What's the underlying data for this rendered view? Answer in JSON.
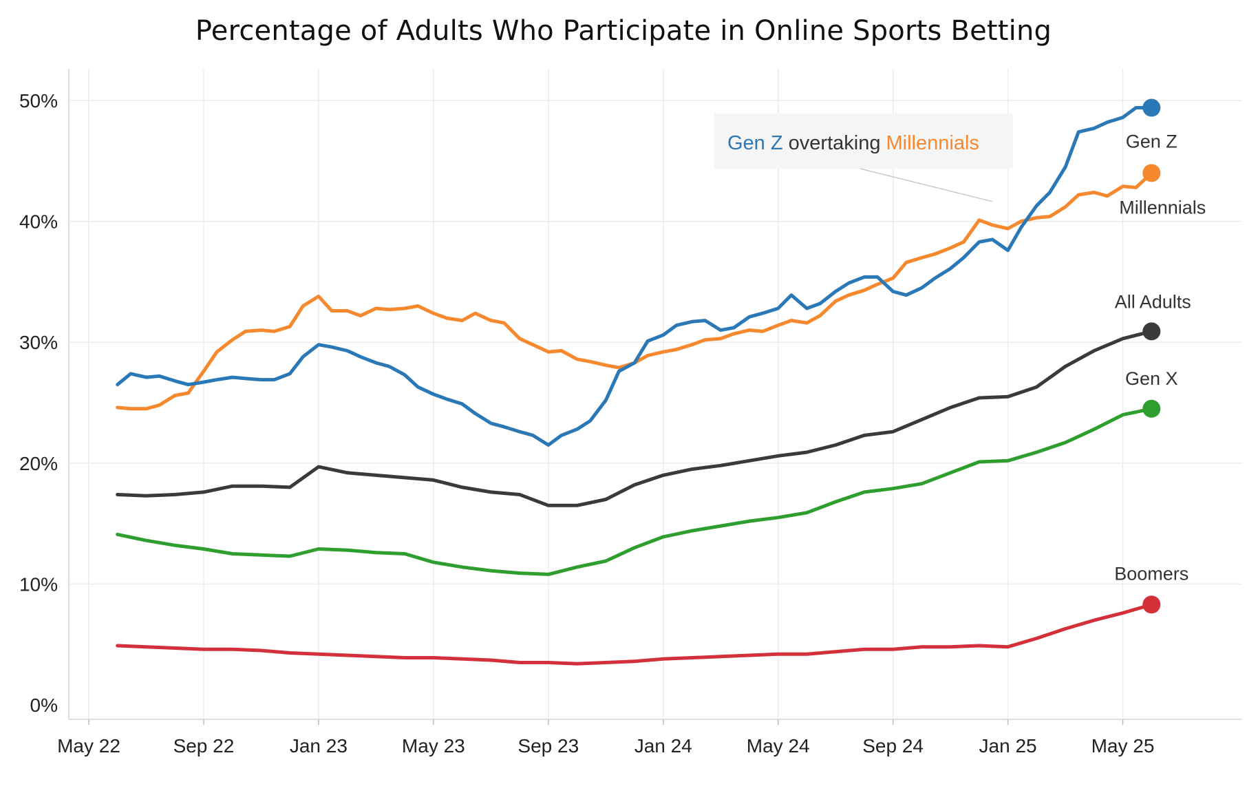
{
  "chart_data": {
    "type": "line",
    "title": "Percentage of Adults Who Participate in Online Sports Betting",
    "xlabel": "",
    "ylabel": "",
    "ylim": [
      0,
      50
    ],
    "y_ticks": [
      "0%",
      "10%",
      "20%",
      "30%",
      "40%",
      "50%"
    ],
    "x_ticks": [
      "May 22",
      "Sep 22",
      "Jan 23",
      "May 23",
      "Sep 23",
      "Jan 24",
      "May 24",
      "Sep 24",
      "Jan 25",
      "May 25"
    ],
    "x_range": [
      "2022-05",
      "2025-07"
    ],
    "grid": true,
    "legend": "direct labels at line ends",
    "annotation": {
      "parts": [
        {
          "text": "Gen Z",
          "color": "#2b78b6"
        },
        {
          "text": " overtaking ",
          "color": "#333333"
        },
        {
          "text": "Millennials",
          "color": "#f6882e"
        }
      ],
      "pointer_to": {
        "x": "2024-12-15",
        "y": 40.5
      }
    },
    "series": [
      {
        "name": "Gen Z",
        "color": "#2b78b6",
        "points": [
          [
            "2022-06-01",
            26.5
          ],
          [
            "2022-06-15",
            27.4
          ],
          [
            "2022-07-01",
            27.1
          ],
          [
            "2022-07-15",
            27.2
          ],
          [
            "2022-08-01",
            26.8
          ],
          [
            "2022-08-15",
            26.5
          ],
          [
            "2022-09-01",
            26.7
          ],
          [
            "2022-09-15",
            26.9
          ],
          [
            "2022-10-01",
            27.1
          ],
          [
            "2022-10-15",
            27.0
          ],
          [
            "2022-11-01",
            26.9
          ],
          [
            "2022-11-15",
            26.9
          ],
          [
            "2022-12-01",
            27.4
          ],
          [
            "2022-12-15",
            28.8
          ],
          [
            "2023-01-01",
            29.8
          ],
          [
            "2023-01-15",
            29.6
          ],
          [
            "2023-02-01",
            29.3
          ],
          [
            "2023-02-15",
            28.8
          ],
          [
            "2023-03-01",
            28.3
          ],
          [
            "2023-03-15",
            28.0
          ],
          [
            "2023-04-01",
            27.3
          ],
          [
            "2023-04-15",
            26.3
          ],
          [
            "2023-05-01",
            25.7
          ],
          [
            "2023-05-15",
            25.3
          ],
          [
            "2023-06-01",
            24.9
          ],
          [
            "2023-06-15",
            24.1
          ],
          [
            "2023-07-01",
            23.3
          ],
          [
            "2023-07-15",
            23.0
          ],
          [
            "2023-08-01",
            22.6
          ],
          [
            "2023-08-15",
            22.3
          ],
          [
            "2023-09-01",
            21.5
          ],
          [
            "2023-09-15",
            22.3
          ],
          [
            "2023-10-01",
            22.8
          ],
          [
            "2023-10-15",
            23.5
          ],
          [
            "2023-11-01",
            25.2
          ],
          [
            "2023-11-15",
            27.6
          ],
          [
            "2023-12-01",
            28.3
          ],
          [
            "2023-12-15",
            30.1
          ],
          [
            "2024-01-01",
            30.6
          ],
          [
            "2024-01-15",
            31.4
          ],
          [
            "2024-02-01",
            31.7
          ],
          [
            "2024-02-15",
            31.8
          ],
          [
            "2024-03-01",
            31.0
          ],
          [
            "2024-03-15",
            31.2
          ],
          [
            "2024-04-01",
            32.1
          ],
          [
            "2024-04-15",
            32.4
          ],
          [
            "2024-05-01",
            32.8
          ],
          [
            "2024-05-15",
            33.9
          ],
          [
            "2024-06-01",
            32.8
          ],
          [
            "2024-06-15",
            33.2
          ],
          [
            "2024-07-01",
            34.2
          ],
          [
            "2024-07-15",
            34.9
          ],
          [
            "2024-08-01",
            35.4
          ],
          [
            "2024-08-15",
            35.4
          ],
          [
            "2024-09-01",
            34.2
          ],
          [
            "2024-09-15",
            33.9
          ],
          [
            "2024-10-01",
            34.5
          ],
          [
            "2024-10-15",
            35.3
          ],
          [
            "2024-11-01",
            36.1
          ],
          [
            "2024-11-15",
            37.0
          ],
          [
            "2024-12-01",
            38.3
          ],
          [
            "2024-12-15",
            38.5
          ],
          [
            "2025-01-01",
            37.6
          ],
          [
            "2025-01-15",
            39.5
          ],
          [
            "2025-02-01",
            41.3
          ],
          [
            "2025-02-15",
            42.4
          ],
          [
            "2025-03-01",
            44.5
          ],
          [
            "2025-03-15",
            47.4
          ],
          [
            "2025-04-01",
            47.7
          ],
          [
            "2025-04-15",
            48.2
          ],
          [
            "2025-05-01",
            48.6
          ],
          [
            "2025-05-15",
            49.4
          ],
          [
            "2025-06-01",
            49.4
          ]
        ]
      },
      {
        "name": "Millennials",
        "color": "#f6882e",
        "points": [
          [
            "2022-06-01",
            24.6
          ],
          [
            "2022-06-15",
            24.5
          ],
          [
            "2022-07-01",
            24.5
          ],
          [
            "2022-07-15",
            24.8
          ],
          [
            "2022-08-01",
            25.6
          ],
          [
            "2022-08-15",
            25.8
          ],
          [
            "2022-09-01",
            27.6
          ],
          [
            "2022-09-15",
            29.2
          ],
          [
            "2022-10-01",
            30.2
          ],
          [
            "2022-10-15",
            30.9
          ],
          [
            "2022-11-01",
            31.0
          ],
          [
            "2022-11-15",
            30.9
          ],
          [
            "2022-12-01",
            31.3
          ],
          [
            "2022-12-15",
            33.0
          ],
          [
            "2023-01-01",
            33.8
          ],
          [
            "2023-01-15",
            32.6
          ],
          [
            "2023-02-01",
            32.6
          ],
          [
            "2023-02-15",
            32.2
          ],
          [
            "2023-03-01",
            32.8
          ],
          [
            "2023-03-15",
            32.7
          ],
          [
            "2023-04-01",
            32.8
          ],
          [
            "2023-04-15",
            33.0
          ],
          [
            "2023-05-01",
            32.4
          ],
          [
            "2023-05-15",
            32.0
          ],
          [
            "2023-06-01",
            31.8
          ],
          [
            "2023-06-15",
            32.4
          ],
          [
            "2023-07-01",
            31.8
          ],
          [
            "2023-07-15",
            31.6
          ],
          [
            "2023-08-01",
            30.3
          ],
          [
            "2023-08-15",
            29.8
          ],
          [
            "2023-09-01",
            29.2
          ],
          [
            "2023-09-15",
            29.3
          ],
          [
            "2023-10-01",
            28.6
          ],
          [
            "2023-10-15",
            28.4
          ],
          [
            "2023-11-01",
            28.1
          ],
          [
            "2023-11-15",
            27.9
          ],
          [
            "2023-12-01",
            28.3
          ],
          [
            "2023-12-15",
            28.9
          ],
          [
            "2024-01-01",
            29.2
          ],
          [
            "2024-01-15",
            29.4
          ],
          [
            "2024-02-01",
            29.8
          ],
          [
            "2024-02-15",
            30.2
          ],
          [
            "2024-03-01",
            30.3
          ],
          [
            "2024-03-15",
            30.7
          ],
          [
            "2024-04-01",
            31.0
          ],
          [
            "2024-04-15",
            30.9
          ],
          [
            "2024-05-01",
            31.4
          ],
          [
            "2024-05-15",
            31.8
          ],
          [
            "2024-06-01",
            31.6
          ],
          [
            "2024-06-15",
            32.2
          ],
          [
            "2024-07-01",
            33.4
          ],
          [
            "2024-07-15",
            33.9
          ],
          [
            "2024-08-01",
            34.3
          ],
          [
            "2024-08-15",
            34.8
          ],
          [
            "2024-09-01",
            35.3
          ],
          [
            "2024-09-15",
            36.6
          ],
          [
            "2024-10-01",
            37.0
          ],
          [
            "2024-10-15",
            37.3
          ],
          [
            "2024-11-01",
            37.8
          ],
          [
            "2024-11-15",
            38.3
          ],
          [
            "2024-12-01",
            40.1
          ],
          [
            "2024-12-15",
            39.7
          ],
          [
            "2025-01-01",
            39.4
          ],
          [
            "2025-01-15",
            40.0
          ],
          [
            "2025-02-01",
            40.3
          ],
          [
            "2025-02-15",
            40.4
          ],
          [
            "2025-03-01",
            41.2
          ],
          [
            "2025-03-15",
            42.2
          ],
          [
            "2025-04-01",
            42.4
          ],
          [
            "2025-04-15",
            42.1
          ],
          [
            "2025-05-01",
            42.9
          ],
          [
            "2025-05-15",
            42.8
          ],
          [
            "2025-06-01",
            44.0
          ]
        ]
      },
      {
        "name": "All Adults",
        "color": "#3a3a3a",
        "points": [
          [
            "2022-06-01",
            17.4
          ],
          [
            "2022-07-01",
            17.3
          ],
          [
            "2022-08-01",
            17.4
          ],
          [
            "2022-09-01",
            17.6
          ],
          [
            "2022-10-01",
            18.1
          ],
          [
            "2022-11-01",
            18.1
          ],
          [
            "2022-12-01",
            18.0
          ],
          [
            "2023-01-01",
            19.7
          ],
          [
            "2023-02-01",
            19.2
          ],
          [
            "2023-03-01",
            19.0
          ],
          [
            "2023-04-01",
            18.8
          ],
          [
            "2023-05-01",
            18.6
          ],
          [
            "2023-06-01",
            18.0
          ],
          [
            "2023-07-01",
            17.6
          ],
          [
            "2023-08-01",
            17.4
          ],
          [
            "2023-09-01",
            16.5
          ],
          [
            "2023-10-01",
            16.5
          ],
          [
            "2023-11-01",
            17.0
          ],
          [
            "2023-12-01",
            18.2
          ],
          [
            "2024-01-01",
            19.0
          ],
          [
            "2024-02-01",
            19.5
          ],
          [
            "2024-03-01",
            19.8
          ],
          [
            "2024-04-01",
            20.2
          ],
          [
            "2024-05-01",
            20.6
          ],
          [
            "2024-06-01",
            20.9
          ],
          [
            "2024-07-01",
            21.5
          ],
          [
            "2024-08-01",
            22.3
          ],
          [
            "2024-09-01",
            22.6
          ],
          [
            "2024-10-01",
            23.6
          ],
          [
            "2024-11-01",
            24.6
          ],
          [
            "2024-12-01",
            25.4
          ],
          [
            "2025-01-01",
            25.5
          ],
          [
            "2025-02-01",
            26.3
          ],
          [
            "2025-03-01",
            28.0
          ],
          [
            "2025-04-01",
            29.3
          ],
          [
            "2025-05-01",
            30.3
          ],
          [
            "2025-06-01",
            30.9
          ]
        ]
      },
      {
        "name": "Gen X",
        "color": "#2e9e2e",
        "points": [
          [
            "2022-06-01",
            14.1
          ],
          [
            "2022-07-01",
            13.6
          ],
          [
            "2022-08-01",
            13.2
          ],
          [
            "2022-09-01",
            12.9
          ],
          [
            "2022-10-01",
            12.5
          ],
          [
            "2022-11-01",
            12.4
          ],
          [
            "2022-12-01",
            12.3
          ],
          [
            "2023-01-01",
            12.9
          ],
          [
            "2023-02-01",
            12.8
          ],
          [
            "2023-03-01",
            12.6
          ],
          [
            "2023-04-01",
            12.5
          ],
          [
            "2023-05-01",
            11.8
          ],
          [
            "2023-06-01",
            11.4
          ],
          [
            "2023-07-01",
            11.1
          ],
          [
            "2023-08-01",
            10.9
          ],
          [
            "2023-09-01",
            10.8
          ],
          [
            "2023-10-01",
            11.4
          ],
          [
            "2023-11-01",
            11.9
          ],
          [
            "2023-12-01",
            13.0
          ],
          [
            "2024-01-01",
            13.9
          ],
          [
            "2024-02-01",
            14.4
          ],
          [
            "2024-03-01",
            14.8
          ],
          [
            "2024-04-01",
            15.2
          ],
          [
            "2024-05-01",
            15.5
          ],
          [
            "2024-06-01",
            15.9
          ],
          [
            "2024-07-01",
            16.8
          ],
          [
            "2024-08-01",
            17.6
          ],
          [
            "2024-09-01",
            17.9
          ],
          [
            "2024-10-01",
            18.3
          ],
          [
            "2024-11-01",
            19.2
          ],
          [
            "2024-12-01",
            20.1
          ],
          [
            "2025-01-01",
            20.2
          ],
          [
            "2025-02-01",
            20.9
          ],
          [
            "2025-03-01",
            21.7
          ],
          [
            "2025-04-01",
            22.8
          ],
          [
            "2025-05-01",
            24.0
          ],
          [
            "2025-06-01",
            24.5
          ]
        ]
      },
      {
        "name": "Boomers",
        "color": "#d3303a",
        "points": [
          [
            "2022-06-01",
            4.9
          ],
          [
            "2022-07-01",
            4.8
          ],
          [
            "2022-08-01",
            4.7
          ],
          [
            "2022-09-01",
            4.6
          ],
          [
            "2022-10-01",
            4.6
          ],
          [
            "2022-11-01",
            4.5
          ],
          [
            "2022-12-01",
            4.3
          ],
          [
            "2023-01-01",
            4.2
          ],
          [
            "2023-02-01",
            4.1
          ],
          [
            "2023-03-01",
            4.0
          ],
          [
            "2023-04-01",
            3.9
          ],
          [
            "2023-05-01",
            3.9
          ],
          [
            "2023-06-01",
            3.8
          ],
          [
            "2023-07-01",
            3.7
          ],
          [
            "2023-08-01",
            3.5
          ],
          [
            "2023-09-01",
            3.5
          ],
          [
            "2023-10-01",
            3.4
          ],
          [
            "2023-11-01",
            3.5
          ],
          [
            "2023-12-01",
            3.6
          ],
          [
            "2024-01-01",
            3.8
          ],
          [
            "2024-02-01",
            3.9
          ],
          [
            "2024-03-01",
            4.0
          ],
          [
            "2024-04-01",
            4.1
          ],
          [
            "2024-05-01",
            4.2
          ],
          [
            "2024-06-01",
            4.2
          ],
          [
            "2024-07-01",
            4.4
          ],
          [
            "2024-08-01",
            4.6
          ],
          [
            "2024-09-01",
            4.6
          ],
          [
            "2024-10-01",
            4.8
          ],
          [
            "2024-11-01",
            4.8
          ],
          [
            "2024-12-01",
            4.9
          ],
          [
            "2025-01-01",
            4.8
          ],
          [
            "2025-02-01",
            5.5
          ],
          [
            "2025-03-01",
            6.3
          ],
          [
            "2025-04-01",
            7.0
          ],
          [
            "2025-05-01",
            7.6
          ],
          [
            "2025-06-01",
            8.3
          ]
        ]
      }
    ]
  }
}
